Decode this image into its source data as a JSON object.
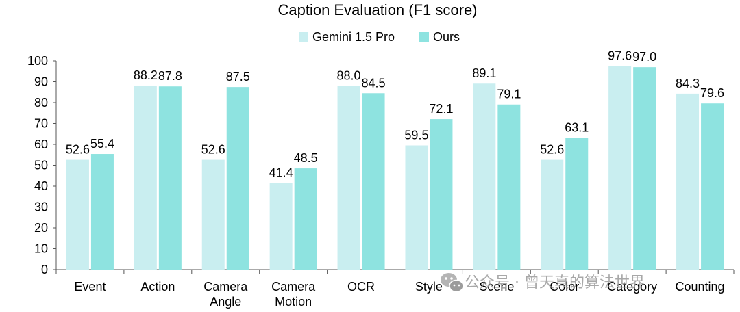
{
  "chart_data": {
    "type": "bar",
    "title": "Caption Evaluation (F1 score)",
    "categories": [
      [
        "Event"
      ],
      [
        "Action"
      ],
      [
        "Camera",
        "Angle"
      ],
      [
        "Camera",
        "Motion"
      ],
      [
        "OCR"
      ],
      [
        "Style"
      ],
      [
        "Scene"
      ],
      [
        "Color"
      ],
      [
        "Category"
      ],
      [
        "Counting"
      ]
    ],
    "series": [
      {
        "name": "Gemini 1.5 Pro",
        "color": "#c9eef0",
        "values": [
          52.6,
          88.2,
          52.6,
          41.4,
          88.0,
          59.5,
          89.1,
          52.6,
          97.6,
          84.3
        ],
        "labels": [
          "52.6",
          "88.2",
          "52.6",
          "41.4",
          "88.0",
          "59.5",
          "89.1",
          "52.6",
          "97.6",
          "84.3"
        ]
      },
      {
        "name": "Ours",
        "color": "#8ee3e0",
        "values": [
          55.4,
          87.8,
          87.5,
          48.5,
          84.5,
          72.1,
          79.1,
          63.1,
          97.0,
          79.6
        ],
        "labels": [
          "55.4",
          "87.8",
          "87.5",
          "48.5",
          "84.5",
          "72.1",
          "79.1",
          "63.1",
          "97.0",
          "79.6"
        ]
      }
    ],
    "ylim": [
      0,
      100
    ],
    "yticks": [
      0,
      10,
      20,
      30,
      40,
      50,
      60,
      70,
      80,
      90,
      100
    ],
    "grid": false,
    "legend_position": "top-center"
  },
  "watermark": {
    "text": "公众号 · 曾天真的算法世界",
    "icon": "wechat-icon"
  }
}
